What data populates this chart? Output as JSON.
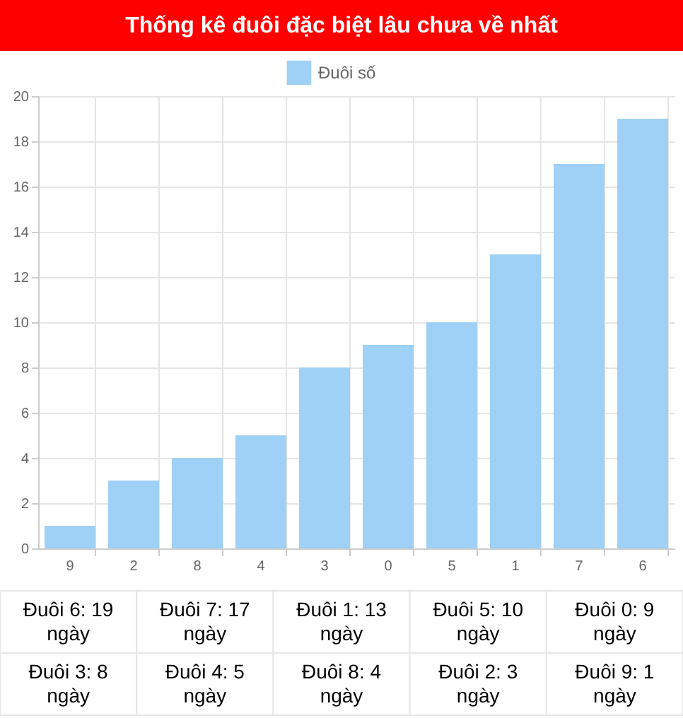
{
  "chart_data": {
    "type": "bar",
    "title": "Thống kê đuôi đặc biệt lâu chưa về nhất",
    "categories": [
      "9",
      "2",
      "8",
      "4",
      "3",
      "0",
      "5",
      "1",
      "7",
      "6"
    ],
    "series": [
      {
        "name": "Đuôi số",
        "color": "#9fd0f5",
        "values": [
          1,
          3,
          4,
          5,
          8,
          9,
          10,
          13,
          17,
          19
        ]
      }
    ],
    "ylim": [
      0,
      20
    ],
    "yticks": [
      0,
      2,
      4,
      6,
      8,
      10,
      12,
      14,
      16,
      18,
      20
    ],
    "grid": true,
    "legend": "top",
    "annotations": [
      "Đuôi 6: 19 ngày",
      "Đuôi 7: 17 ngày",
      "Đuôi 1: 13 ngày",
      "Đuôi 5: 10 ngày",
      "Đuôi 0: 9 ngày",
      "Đuôi 3: 8 ngày",
      "Đuôi 4: 5 ngày",
      "Đuôi 8: 4 ngày",
      "Đuôi 2: 3 ngày",
      "Đuôi 9: 1 ngày"
    ]
  }
}
